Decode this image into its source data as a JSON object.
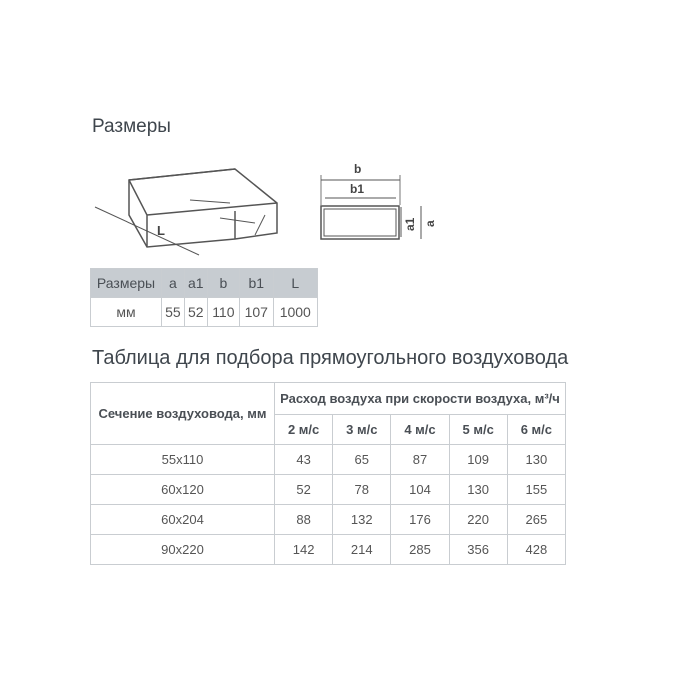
{
  "sizes_title": "Размеры",
  "diagram": {
    "labels": {
      "length": "L",
      "b": "b",
      "b1": "b1",
      "a": "a",
      "a1": "a1"
    }
  },
  "dims_table": {
    "headers": [
      "Размеры",
      "a",
      "a1",
      "b",
      "b1",
      "L"
    ],
    "row": [
      "мм",
      "55",
      "52",
      "110",
      "107",
      "1000"
    ]
  },
  "selection_title": "Таблица для подбора прямоугольного воздуховода",
  "flow_table": {
    "section_header": "Сечение воздуховода, мм",
    "flow_header": "Расход воздуха при скорости воздуха, м³/ч",
    "speeds": [
      "2 м/с",
      "3 м/с",
      "4 м/с",
      "5 м/с",
      "6 м/с"
    ],
    "rows": [
      {
        "section": "55x110",
        "values": [
          "43",
          "65",
          "87",
          "109",
          "130"
        ]
      },
      {
        "section": "60x120",
        "values": [
          "52",
          "78",
          "104",
          "130",
          "155"
        ]
      },
      {
        "section": "60x204",
        "values": [
          "88",
          "132",
          "176",
          "220",
          "265"
        ]
      },
      {
        "section": "90x220",
        "values": [
          "142",
          "214",
          "285",
          "356",
          "428"
        ]
      }
    ]
  }
}
